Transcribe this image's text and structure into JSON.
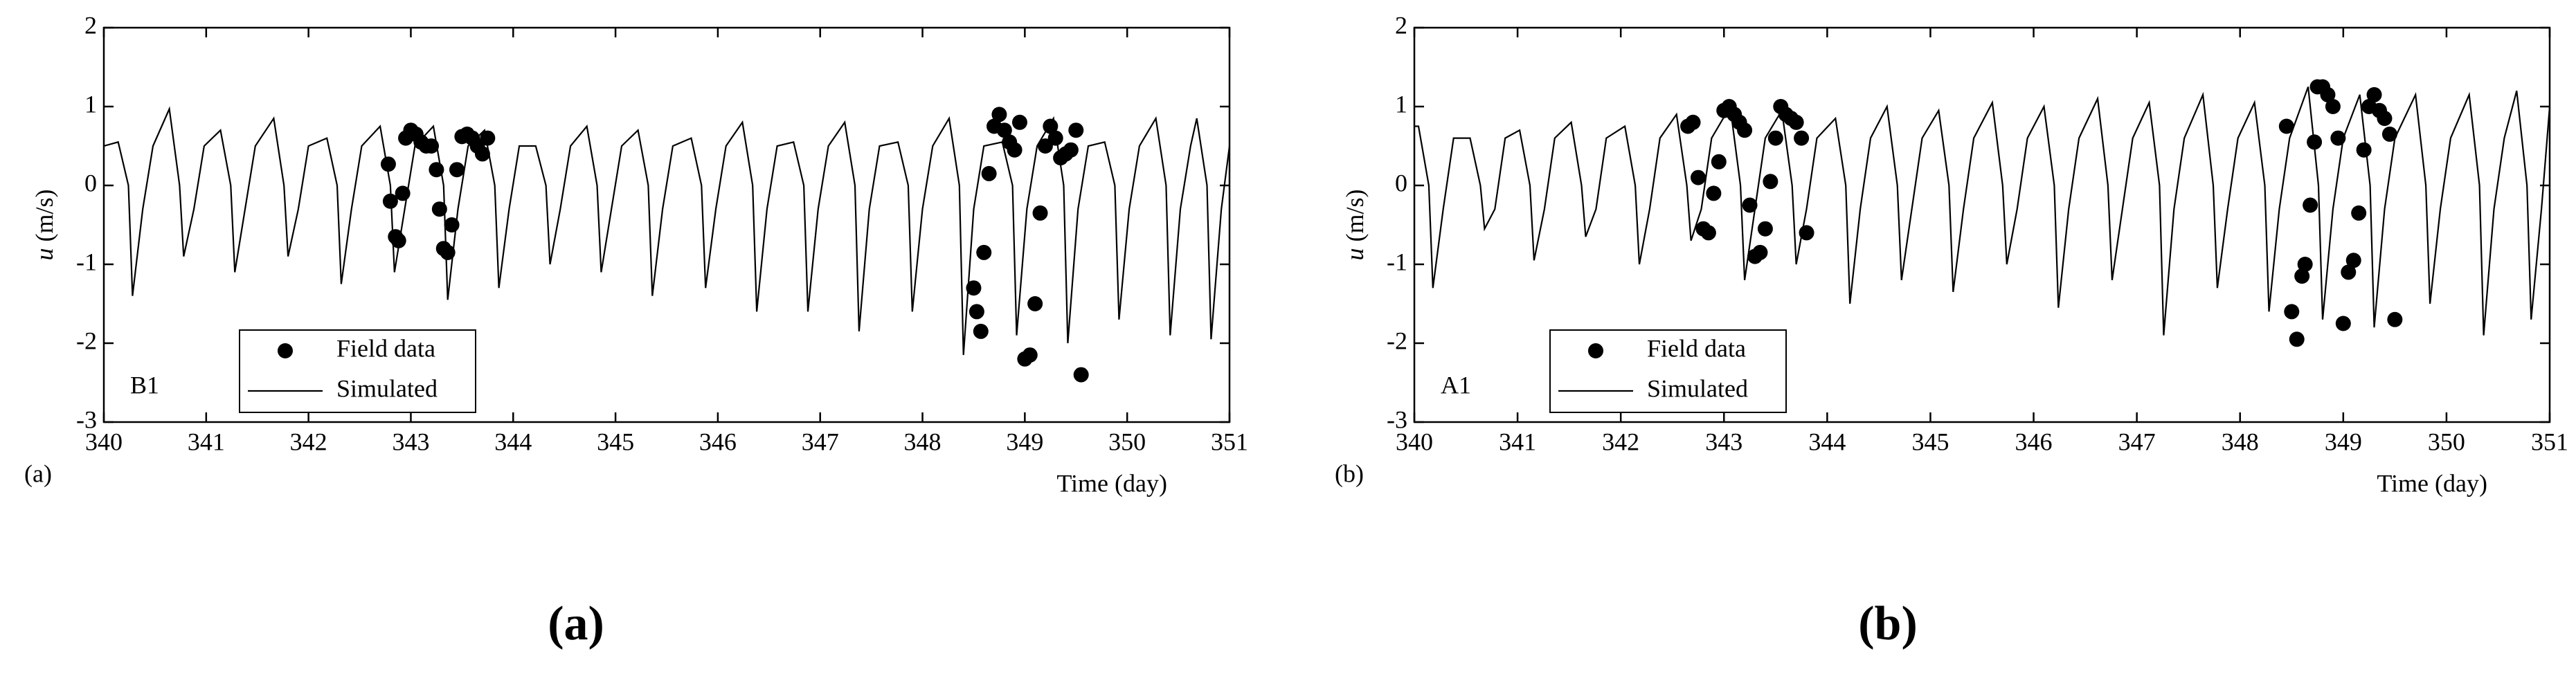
{
  "chart_data": [
    {
      "type": "line",
      "panel_label": "(a)",
      "station": "B1",
      "caption": "(a)",
      "x_label": "Time (day)",
      "y_label": {
        "symbol": "u",
        "unit": "(m/s)"
      },
      "xlim": [
        340,
        351
      ],
      "xticks": [
        340,
        341,
        342,
        343,
        344,
        345,
        346,
        347,
        348,
        349,
        350,
        351
      ],
      "ylim": [
        -3,
        2
      ],
      "yticks": [
        -3,
        -2,
        -1,
        0,
        1,
        2
      ],
      "series": [
        {
          "name": "Field data",
          "style": "markers",
          "color": "#000000",
          "x": [
            342.78,
            342.8,
            342.85,
            342.88,
            342.92,
            342.95,
            343.0,
            343.05,
            343.1,
            343.15,
            343.2,
            343.25,
            343.28,
            343.32,
            343.36,
            343.4,
            343.45,
            343.5,
            343.55,
            343.6,
            343.65,
            343.7,
            343.75,
            348.5,
            348.53,
            348.57,
            348.6,
            348.65,
            348.7,
            348.75,
            348.8,
            348.85,
            348.9,
            348.95,
            349.0,
            349.05,
            349.1,
            349.15,
            349.2,
            349.25,
            349.3,
            349.35,
            349.4,
            349.45,
            349.5,
            349.55
          ],
          "values": [
            0.27,
            -0.2,
            -0.65,
            -0.7,
            -0.1,
            0.6,
            0.7,
            0.65,
            0.55,
            0.5,
            0.5,
            0.2,
            -0.3,
            -0.8,
            -0.85,
            -0.5,
            0.2,
            0.62,
            0.65,
            0.6,
            0.5,
            0.4,
            0.6,
            -1.3,
            -1.6,
            -1.85,
            -0.85,
            0.15,
            0.75,
            0.9,
            0.7,
            0.55,
            0.45,
            0.8,
            -2.2,
            -2.15,
            -1.5,
            -0.35,
            0.5,
            0.75,
            0.6,
            0.35,
            0.4,
            0.45,
            0.7,
            -2.4
          ]
        },
        {
          "name": "Simulated",
          "style": "line",
          "color": "#000000",
          "x": [
            340.0,
            340.14,
            340.24,
            340.28,
            340.38,
            340.48,
            340.64,
            340.74,
            340.78,
            340.88,
            340.98,
            341.14,
            341.24,
            341.28,
            341.38,
            341.48,
            341.66,
            341.76,
            341.8,
            341.9,
            342.0,
            342.18,
            342.28,
            342.32,
            342.42,
            342.52,
            342.7,
            342.8,
            342.84,
            342.94,
            343.04,
            343.22,
            343.32,
            343.36,
            343.46,
            343.56,
            343.72,
            343.82,
            343.86,
            343.96,
            344.06,
            344.22,
            344.32,
            344.36,
            344.46,
            344.56,
            344.72,
            344.82,
            344.86,
            344.96,
            345.06,
            345.22,
            345.32,
            345.36,
            345.46,
            345.56,
            345.74,
            345.84,
            345.88,
            345.98,
            346.08,
            346.24,
            346.34,
            346.38,
            346.48,
            346.58,
            346.74,
            346.84,
            346.88,
            346.98,
            347.08,
            347.24,
            347.34,
            347.38,
            347.48,
            347.58,
            347.76,
            347.86,
            347.9,
            348.0,
            348.1,
            348.26,
            348.36,
            348.4,
            348.5,
            348.6,
            348.78,
            348.88,
            348.92,
            349.02,
            349.12,
            349.28,
            349.38,
            349.42,
            349.52,
            349.62,
            349.78,
            349.88,
            349.92,
            350.02,
            350.12,
            350.28,
            350.38,
            350.42,
            350.52,
            350.62,
            350.68,
            350.78,
            350.82,
            350.92,
            351.0
          ],
          "values": [
            0.5,
            0.55,
            0,
            -1.4,
            -0.3,
            0.5,
            0.97,
            0,
            -0.9,
            -0.3,
            0.5,
            0.7,
            0,
            -1.1,
            -0.3,
            0.5,
            0.85,
            0,
            -0.9,
            -0.3,
            0.5,
            0.6,
            0,
            -1.25,
            -0.3,
            0.5,
            0.75,
            0,
            -1.1,
            -0.3,
            0.5,
            0.75,
            0,
            -1.45,
            -0.3,
            0.5,
            0.7,
            0,
            -1.3,
            -0.3,
            0.5,
            0.5,
            0,
            -1.0,
            -0.3,
            0.5,
            0.75,
            0,
            -1.1,
            -0.3,
            0.5,
            0.7,
            0,
            -1.4,
            -0.3,
            0.5,
            0.6,
            0,
            -1.3,
            -0.3,
            0.5,
            0.8,
            0,
            -1.6,
            -0.3,
            0.5,
            0.55,
            0,
            -1.6,
            -0.3,
            0.5,
            0.8,
            0,
            -1.85,
            -0.3,
            0.5,
            0.55,
            0,
            -1.6,
            -0.3,
            0.5,
            0.85,
            0,
            -2.15,
            -0.3,
            0.5,
            0.55,
            0,
            -1.9,
            -0.3,
            0.5,
            0.85,
            0,
            -2.0,
            -0.3,
            0.5,
            0.55,
            0,
            -1.7,
            -0.3,
            0.5,
            0.85,
            0,
            -1.9,
            -0.3,
            0.5,
            0.85,
            0,
            -1.95,
            -0.3,
            0.5
          ]
        }
      ]
    },
    {
      "type": "line",
      "panel_label": "(b)",
      "station": "A1",
      "caption": "(b)",
      "x_label": "Time (day)",
      "y_label": {
        "symbol": "u",
        "unit": "(m/s)"
      },
      "xlim": [
        340,
        351
      ],
      "xticks": [
        340,
        341,
        342,
        343,
        344,
        345,
        346,
        347,
        348,
        349,
        350,
        351
      ],
      "ylim": [
        -3,
        2
      ],
      "yticks": [
        -3,
        -2,
        -1,
        0,
        1,
        2
      ],
      "series": [
        {
          "name": "Field data",
          "style": "markers",
          "color": "#000000",
          "x": [
            342.65,
            342.7,
            342.75,
            342.8,
            342.85,
            342.9,
            342.95,
            343.0,
            343.05,
            343.1,
            343.15,
            343.2,
            343.25,
            343.3,
            343.35,
            343.4,
            343.45,
            343.5,
            343.55,
            343.6,
            343.65,
            343.7,
            343.75,
            343.8,
            348.45,
            348.5,
            348.55,
            348.6,
            348.63,
            348.68,
            348.72,
            348.75,
            348.8,
            348.85,
            348.9,
            348.95,
            349.0,
            349.05,
            349.1,
            349.15,
            349.2,
            349.25,
            349.3,
            349.35,
            349.4,
            349.45,
            349.5
          ],
          "values": [
            0.75,
            0.8,
            0.1,
            -0.55,
            -0.6,
            -0.1,
            0.3,
            0.95,
            1.0,
            0.9,
            0.8,
            0.7,
            -0.25,
            -0.9,
            -0.85,
            -0.55,
            0.05,
            0.6,
            1.0,
            0.9,
            0.85,
            0.8,
            0.6,
            -0.6,
            0.75,
            -1.6,
            -1.95,
            -1.15,
            -1.0,
            -0.25,
            0.55,
            1.25,
            1.25,
            1.15,
            1.0,
            0.6,
            -1.75,
            -1.1,
            -0.95,
            -0.35,
            0.45,
            1.0,
            1.15,
            0.95,
            0.85,
            0.65,
            -1.7
          ]
        },
        {
          "name": "Simulated",
          "style": "line",
          "color": "#000000",
          "x": [
            340.0,
            340.04,
            340.14,
            340.18,
            340.28,
            340.38,
            340.54,
            340.64,
            340.68,
            340.78,
            340.88,
            341.02,
            341.12,
            341.16,
            341.26,
            341.36,
            341.52,
            341.62,
            341.66,
            341.76,
            341.86,
            342.04,
            342.14,
            342.18,
            342.28,
            342.38,
            342.54,
            342.64,
            342.68,
            342.78,
            342.88,
            343.06,
            343.16,
            343.2,
            343.3,
            343.4,
            343.56,
            343.66,
            343.7,
            343.8,
            343.9,
            344.08,
            344.18,
            344.22,
            344.32,
            344.42,
            344.58,
            344.68,
            344.72,
            344.82,
            344.92,
            345.08,
            345.18,
            345.22,
            345.32,
            345.42,
            345.6,
            345.7,
            345.74,
            345.84,
            345.94,
            346.1,
            346.2,
            346.24,
            346.34,
            346.44,
            346.62,
            346.72,
            346.76,
            346.86,
            346.96,
            347.12,
            347.22,
            347.26,
            347.36,
            347.46,
            347.64,
            347.74,
            347.78,
            347.88,
            347.98,
            348.14,
            348.24,
            348.28,
            348.38,
            348.48,
            348.66,
            348.76,
            348.8,
            348.9,
            349.0,
            349.16,
            349.26,
            349.3,
            349.4,
            349.5,
            349.7,
            349.8,
            349.84,
            349.94,
            350.04,
            350.22,
            350.32,
            350.36,
            350.46,
            350.56,
            350.68,
            350.78,
            350.82,
            350.92,
            351.0
          ],
          "values": [
            0.75,
            0.75,
            0,
            -1.3,
            -0.3,
            0.6,
            0.6,
            0,
            -0.55,
            -0.3,
            0.6,
            0.7,
            0,
            -0.95,
            -0.3,
            0.6,
            0.8,
            0,
            -0.65,
            -0.3,
            0.6,
            0.75,
            0,
            -1.0,
            -0.3,
            0.6,
            0.9,
            0,
            -0.7,
            -0.3,
            0.6,
            1.0,
            0,
            -1.2,
            -0.3,
            0.6,
            0.95,
            0,
            -1.0,
            -0.3,
            0.6,
            0.85,
            0,
            -1.5,
            -0.3,
            0.6,
            1.0,
            0,
            -1.2,
            -0.3,
            0.6,
            0.95,
            0,
            -1.35,
            -0.3,
            0.6,
            1.05,
            0,
            -1.0,
            -0.3,
            0.6,
            1.0,
            0,
            -1.55,
            -0.3,
            0.6,
            1.1,
            0,
            -1.2,
            -0.3,
            0.6,
            1.05,
            0,
            -1.9,
            -0.3,
            0.6,
            1.15,
            0,
            -1.3,
            -0.3,
            0.6,
            1.05,
            0,
            -1.6,
            -0.3,
            0.6,
            1.25,
            0,
            -1.7,
            -0.3,
            0.6,
            1.15,
            0,
            -1.8,
            -0.3,
            0.6,
            1.15,
            0,
            -1.5,
            -0.3,
            0.6,
            1.15,
            0,
            -1.9,
            -0.3,
            0.6,
            1.2,
            0,
            -1.7,
            -0.3,
            1.0
          ]
        }
      ]
    }
  ]
}
